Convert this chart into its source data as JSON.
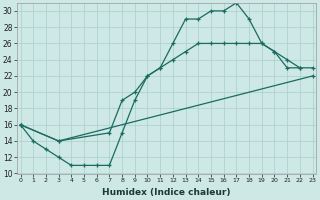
{
  "xlabel": "Humidex (Indice chaleur)",
  "bg_color": "#cde8e5",
  "grid_color": "#aacfcb",
  "line_color": "#1a6b60",
  "xlim_min": -0.3,
  "xlim_max": 23.3,
  "ylim_min": 10,
  "ylim_max": 31,
  "xticks": [
    0,
    1,
    2,
    3,
    4,
    5,
    6,
    7,
    8,
    9,
    10,
    11,
    12,
    13,
    14,
    15,
    16,
    17,
    18,
    19,
    20,
    21,
    22,
    23
  ],
  "yticks": [
    10,
    12,
    14,
    16,
    18,
    20,
    22,
    24,
    26,
    28,
    30
  ],
  "curve1_x": [
    0,
    1,
    2,
    3,
    4,
    5,
    6,
    7,
    8,
    9,
    10,
    11,
    12,
    13,
    14,
    15,
    16,
    17,
    18,
    19,
    20,
    21,
    22
  ],
  "curve1_y": [
    16,
    14,
    13,
    12,
    11,
    11,
    11,
    11,
    15,
    19,
    22,
    23,
    26,
    29,
    29,
    30,
    30,
    31,
    29,
    26,
    25,
    23,
    23
  ],
  "curve2_x": [
    0,
    3,
    7,
    8,
    9,
    10,
    11,
    12,
    13,
    14,
    15,
    16,
    17,
    18,
    19,
    20,
    21,
    22,
    23
  ],
  "curve2_y": [
    16,
    14,
    15,
    19,
    20,
    22,
    23,
    24,
    25,
    26,
    26,
    26,
    26,
    26,
    26,
    25,
    24,
    23,
    23
  ],
  "curve3_x": [
    0,
    3,
    23
  ],
  "curve3_y": [
    16,
    14,
    22
  ]
}
